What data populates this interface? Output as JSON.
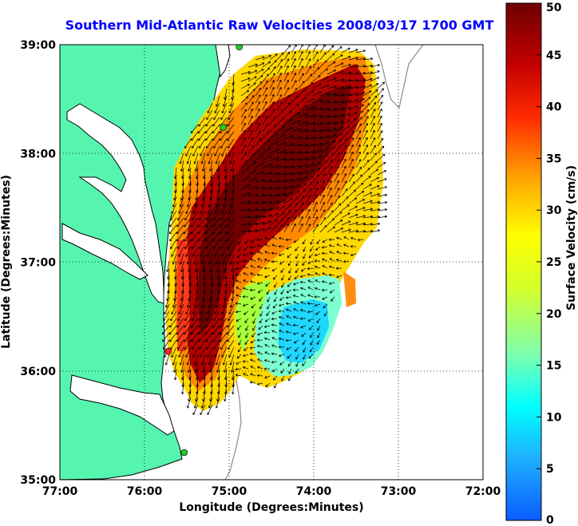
{
  "title": "Southern Mid-Atlantic Raw Velocities 2008/03/17 1700 GMT",
  "map": {
    "x_axis_label": "Longitude (Degrees:Minutes)",
    "y_axis_label": "Latitude (Degrees:Minutes)",
    "lon_range": [
      -77,
      -72
    ],
    "lat_range": [
      35,
      39
    ],
    "x_ticks": [
      {
        "value": -77,
        "label": "77:00"
      },
      {
        "value": -76,
        "label": "76:00"
      },
      {
        "value": -75,
        "label": "75:00"
      },
      {
        "value": -74,
        "label": "74:00"
      },
      {
        "value": -73,
        "label": "73:00"
      },
      {
        "value": -72,
        "label": "72:00"
      }
    ],
    "y_ticks": [
      {
        "value": 39,
        "label": "39:00"
      },
      {
        "value": 38,
        "label": "38:00"
      },
      {
        "value": 37,
        "label": "37:00"
      },
      {
        "value": 36,
        "label": "36:00"
      },
      {
        "value": 35,
        "label": "35:00"
      }
    ],
    "grid": "dotted",
    "land_color": "#55f5b0",
    "stations": [
      {
        "lon": -74.88,
        "lat": 38.98,
        "color": "#22cc22"
      },
      {
        "lon": -75.07,
        "lat": 38.24,
        "color": "#22cc22"
      },
      {
        "lon": -75.72,
        "lat": 36.18,
        "color": "#ff2222"
      },
      {
        "lon": -75.53,
        "lat": 35.25,
        "color": "#22cc22"
      }
    ]
  },
  "colorbar": {
    "label": "Surface Velocity (cm/s)",
    "min": 0,
    "max": 50,
    "ticks": [
      {
        "value": 50,
        "label": "50"
      },
      {
        "value": 45,
        "label": "45"
      },
      {
        "value": 40,
        "label": "40"
      },
      {
        "value": 35,
        "label": "35"
      },
      {
        "value": 30,
        "label": "30"
      },
      {
        "value": 25,
        "label": "25"
      },
      {
        "value": 20,
        "label": "20"
      },
      {
        "value": 15,
        "label": "15"
      },
      {
        "value": 10,
        "label": "10"
      },
      {
        "value": 5,
        "label": "5"
      },
      {
        "value": 0,
        "label": "0"
      }
    ]
  }
}
